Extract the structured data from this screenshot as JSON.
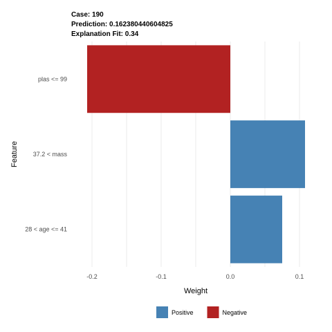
{
  "header": {
    "case_line": "Case: 190",
    "prediction_line": "Prediction: 0.162380440604825",
    "fit_line": "Explanation Fit: 0.34"
  },
  "chart_data": {
    "type": "bar",
    "orientation": "horizontal",
    "categories": [
      "plas <= 99",
      "37.2 < mass",
      "28 < age <= 41"
    ],
    "values": [
      -0.207,
      0.108,
      0.075
    ],
    "bar_class": [
      "Negative",
      "Positive",
      "Positive"
    ],
    "xlabel": "Weight",
    "ylabel": "Feature",
    "xlim": [
      -0.23,
      0.13
    ],
    "xticks": [
      -0.2,
      -0.1,
      0.0,
      0.1
    ],
    "xtick_labels": [
      "-0.2",
      "-0.1",
      "0.0",
      "0.1"
    ],
    "grid": true,
    "legend": {
      "placement": "bottom",
      "entries": [
        {
          "label": "Positive",
          "color": "#4682b4"
        },
        {
          "label": "Negative",
          "color": "#b22222"
        }
      ]
    }
  }
}
